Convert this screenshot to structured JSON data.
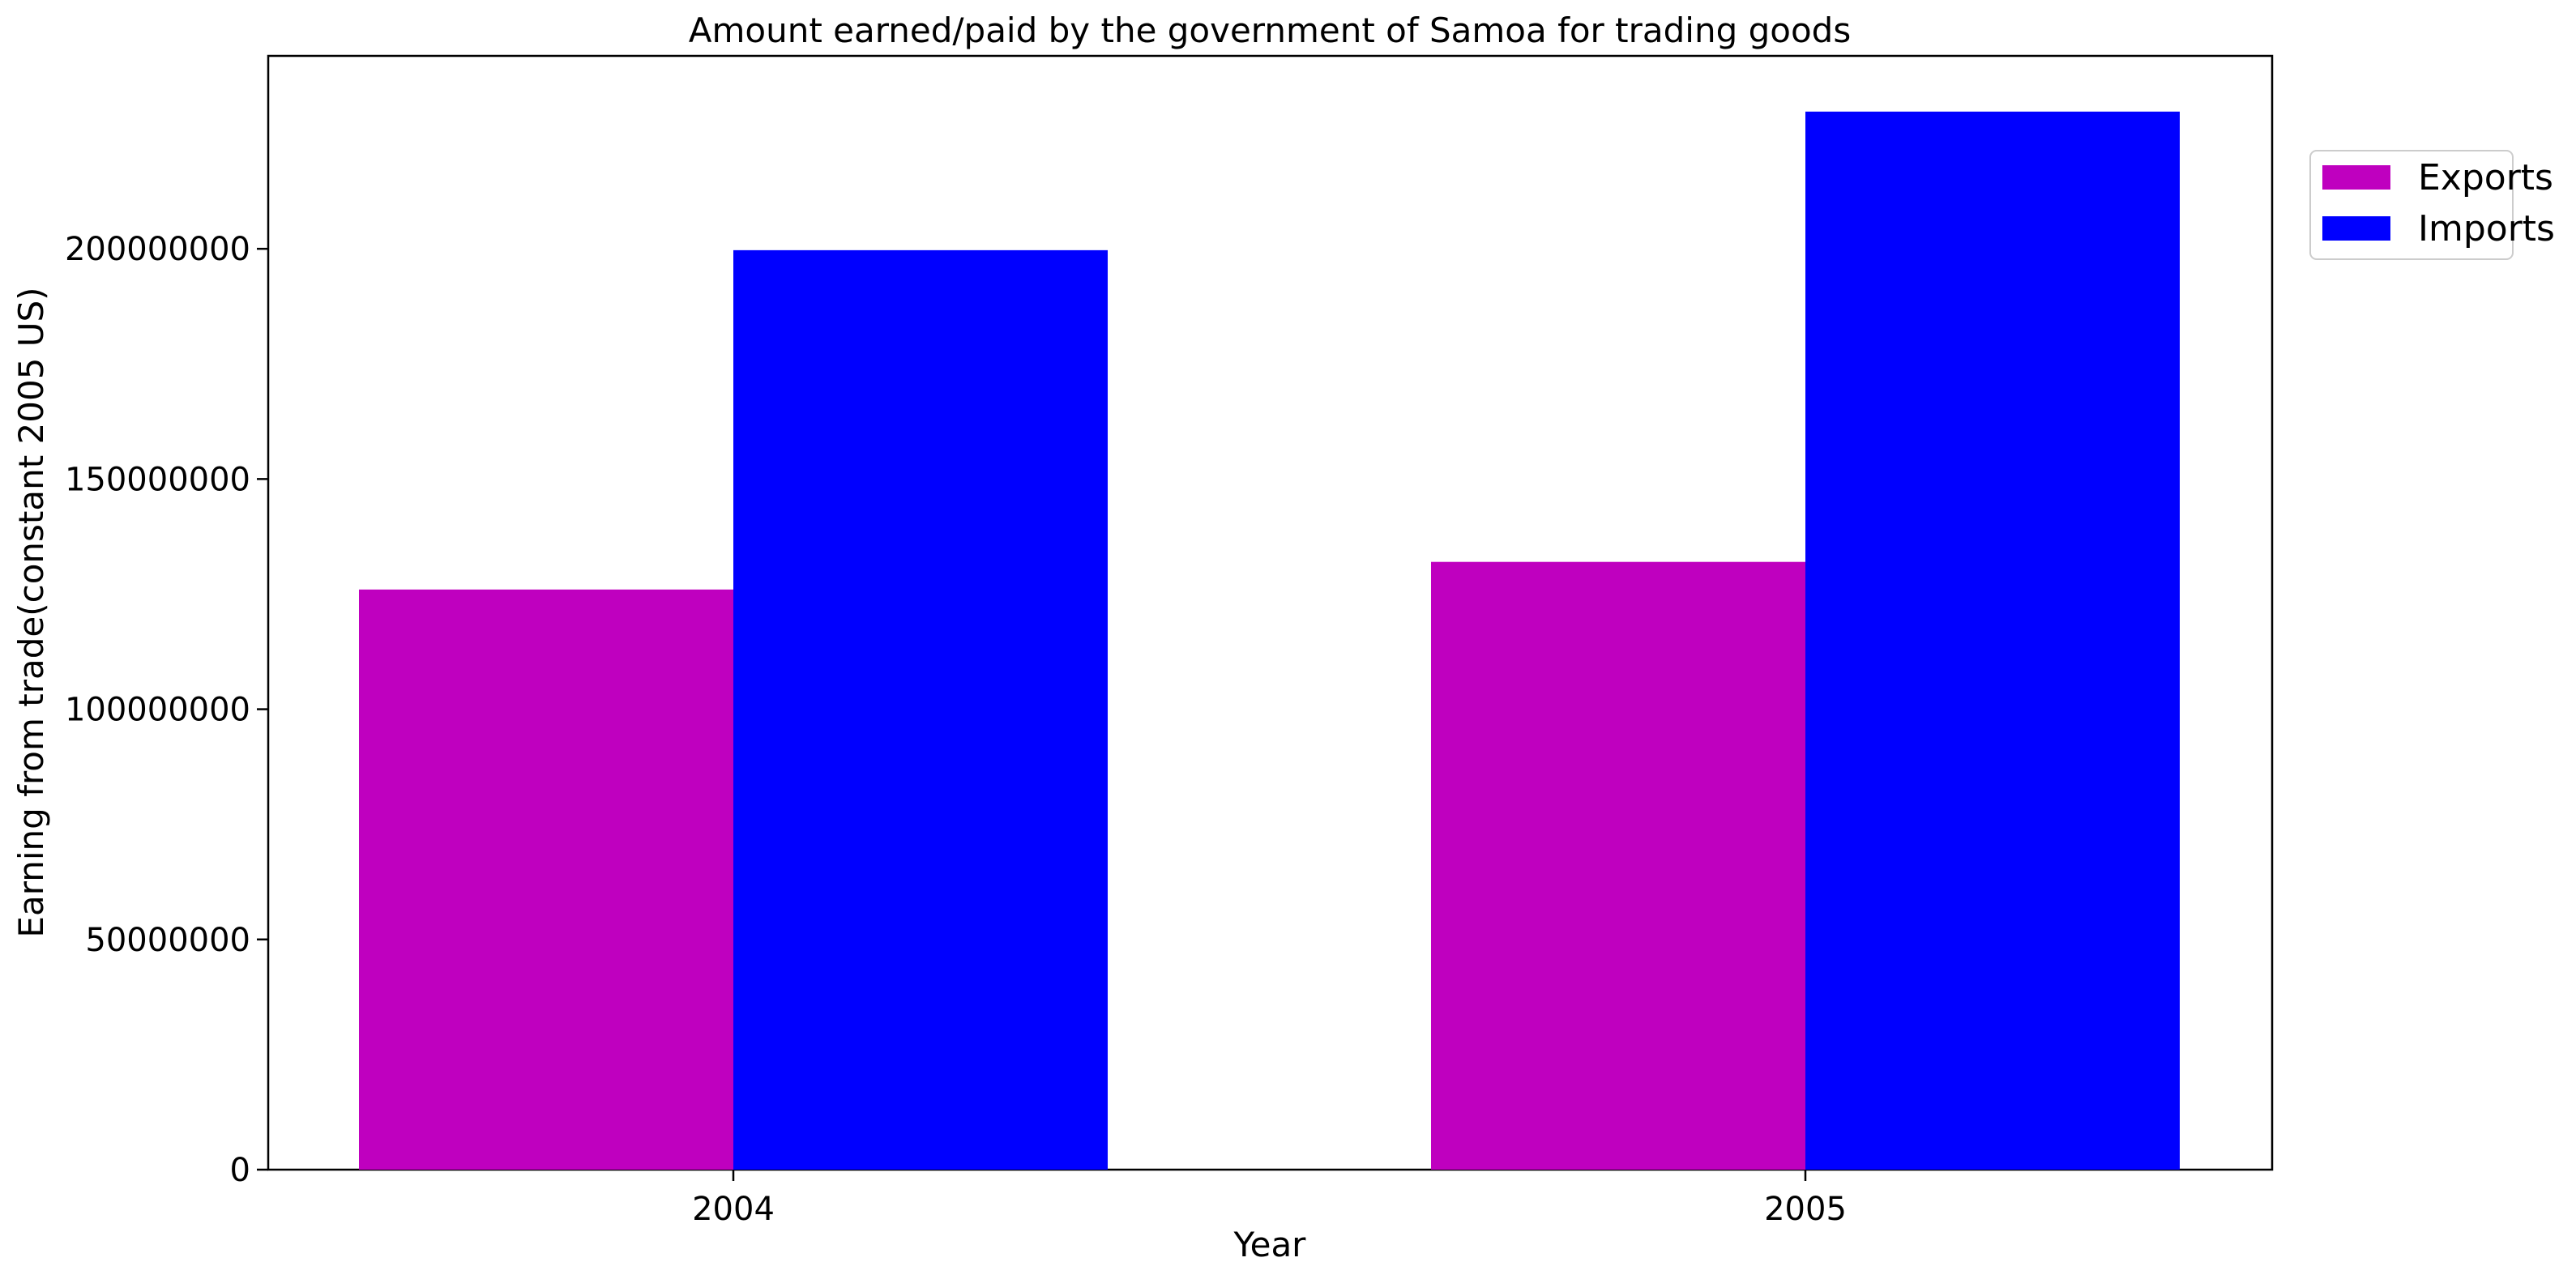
{
  "chart_data": {
    "type": "bar",
    "title": "Amount earned/paid by the government of Samoa for trading goods",
    "xlabel": "Year",
    "ylabel": "Earning from trade(constant 2005 US)",
    "categories": [
      "2004",
      "2005"
    ],
    "series": [
      {
        "name": "Exports",
        "color": "#bf00bf",
        "values": [
          126000000,
          132000000
        ]
      },
      {
        "name": "Imports",
        "color": "#0000ff",
        "values": [
          199700000,
          229800000
        ]
      }
    ],
    "ylim": [
      0,
      241900000
    ],
    "yticks": [
      0,
      50000000,
      100000000,
      150000000,
      200000000
    ],
    "ytick_labels": [
      "0",
      "50000000",
      "100000000",
      "150000000",
      "200000000"
    ],
    "grid": false,
    "legend_position": "upper-right-outside"
  }
}
